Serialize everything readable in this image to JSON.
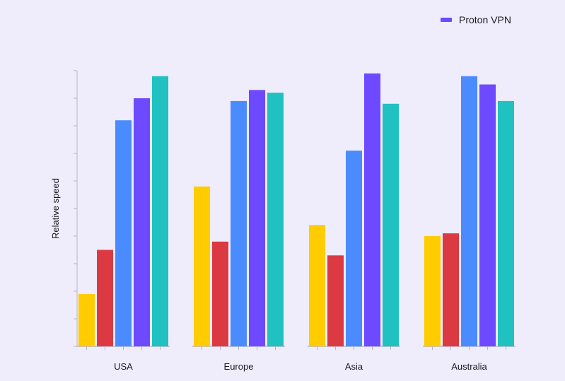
{
  "chart_data": {
    "type": "bar",
    "title": "",
    "xlabel": "",
    "ylabel": "Relative speed",
    "ylim": [
      0,
      100
    ],
    "grid": false,
    "legend_position": "top-right",
    "categories": [
      "USA",
      "Europe",
      "Asia",
      "Australia"
    ],
    "series": [
      {
        "name": "",
        "color": "#ffcc00",
        "values": [
          19,
          58,
          44,
          40
        ]
      },
      {
        "name": "",
        "color": "#dc3a42",
        "values": [
          35,
          38,
          33,
          41
        ]
      },
      {
        "name": "",
        "color": "#4a8cff",
        "values": [
          82,
          89,
          71,
          98
        ]
      },
      {
        "name": "Proton VPN",
        "color": "#6d4aff",
        "values": [
          90,
          93,
          99,
          95
        ]
      },
      {
        "name": "",
        "color": "#1fc1c1",
        "values": [
          98,
          92,
          88,
          89
        ]
      }
    ]
  }
}
